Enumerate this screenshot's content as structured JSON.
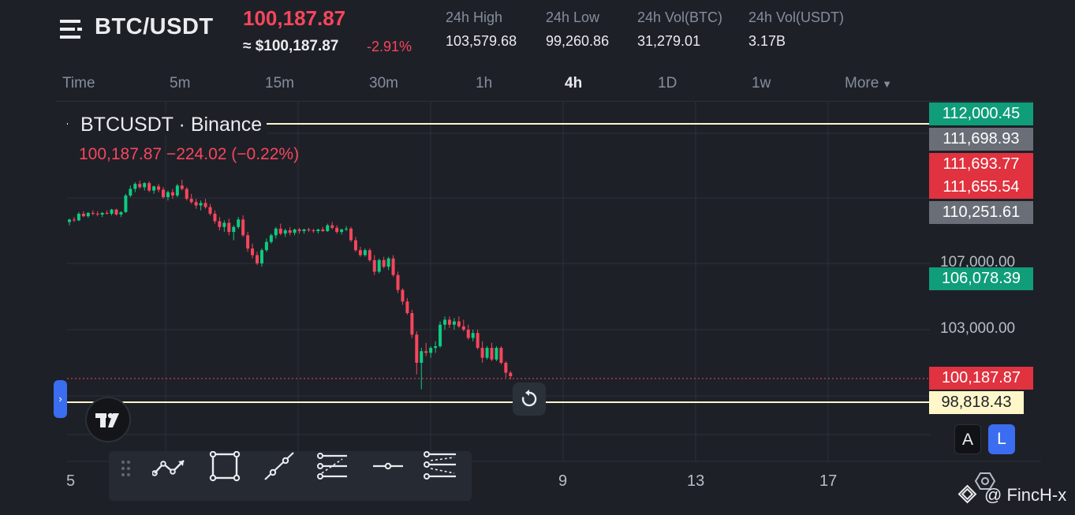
{
  "header": {
    "pair": "BTC/USDT",
    "last_price": "100,187.87",
    "approx_usd": "≈ $100,187.87",
    "change_pct": "-2.91%",
    "stats": [
      {
        "label": "24h High",
        "value": "103,579.68"
      },
      {
        "label": "24h Low",
        "value": "99,260.86"
      },
      {
        "label": "24h Vol(BTC)",
        "value": "31,279.01"
      },
      {
        "label": "24h Vol(USDT)",
        "value": "3.17B"
      }
    ]
  },
  "tabs": [
    {
      "label": "Time",
      "active": false
    },
    {
      "label": "5m",
      "active": false
    },
    {
      "label": "15m",
      "active": false
    },
    {
      "label": "30m",
      "active": false
    },
    {
      "label": "1h",
      "active": false
    },
    {
      "label": "4h",
      "active": true
    },
    {
      "label": "1D",
      "active": false
    },
    {
      "label": "1w",
      "active": false
    },
    {
      "label": "More",
      "active": false
    }
  ],
  "legend": {
    "title": "BTCUSDT · Binance",
    "ohlc": "100,187.87 −224.02 (−0.22%)"
  },
  "price_tags": [
    {
      "label": "112,000.45",
      "color": "#0f9d7a"
    },
    {
      "label": "111,698.93",
      "color": "#6a6e77"
    },
    {
      "label": "111,693.77",
      "color": "#e0323f"
    },
    {
      "label": "111,655.54",
      "color": "#e0323f"
    },
    {
      "label": "110,251.61",
      "color": "#6a6e77"
    },
    {
      "label": "106,078.39",
      "color": "#0f9d7a"
    },
    {
      "label": "100,187.87",
      "color": "#e0323f"
    },
    {
      "label": "98,818.43",
      "color": "#fff7c9"
    }
  ],
  "axis_labels": [
    "107,000.00",
    "103,000.00"
  ],
  "x_ticks": [
    "5",
    "9",
    "13",
    "17"
  ],
  "toggles": {
    "auto": "A",
    "log": "L"
  },
  "toolbar": [
    "drag-handle-icon",
    "trend-line-icon",
    "rectangle-icon",
    "ray-icon",
    "fib-retracement-icon",
    "horizontal-line-icon",
    "parallel-channel-icon"
  ],
  "watermark": "@ FincH-x",
  "colors": {
    "up": "#0ecb81",
    "down": "#f6465d",
    "background": "#1e2027",
    "accent": "#3a6df0"
  },
  "chart_data": {
    "type": "candlestick",
    "title": "BTCUSDT · Binance",
    "interval": "4h",
    "x_ticks": [
      "5",
      "9",
      "13",
      "17"
    ],
    "y_ticks": [
      107000,
      103000
    ],
    "horizontal_lines": [
      112000.45,
      98818.43
    ],
    "last_price": 100187.87,
    "candles": [
      [
        109500,
        109700,
        109300,
        109650
      ],
      [
        109650,
        109800,
        109500,
        109600
      ],
      [
        109600,
        110100,
        109550,
        110000
      ],
      [
        110000,
        110150,
        109800,
        109850
      ],
      [
        109850,
        110100,
        109750,
        110050
      ],
      [
        110050,
        110200,
        109900,
        110000
      ],
      [
        110000,
        110150,
        109850,
        109950
      ],
      [
        109950,
        110100,
        109800,
        110050
      ],
      [
        110050,
        110200,
        109950,
        110000
      ],
      [
        110000,
        110300,
        109900,
        110250
      ],
      [
        110250,
        110300,
        109900,
        109950
      ],
      [
        109950,
        110150,
        109800,
        110100
      ],
      [
        110100,
        111200,
        110050,
        111100
      ],
      [
        111100,
        111700,
        111000,
        111500
      ],
      [
        111500,
        111900,
        111300,
        111800
      ],
      [
        111800,
        112000,
        111500,
        111600
      ],
      [
        111600,
        111900,
        111400,
        111850
      ],
      [
        111850,
        111950,
        111300,
        111400
      ],
      [
        111400,
        111700,
        111200,
        111650
      ],
      [
        111650,
        111800,
        111300,
        111450
      ],
      [
        111450,
        111600,
        110900,
        111000
      ],
      [
        111000,
        111400,
        110800,
        111300
      ],
      [
        111300,
        111500,
        110900,
        111100
      ],
      [
        111100,
        111800,
        111000,
        111700
      ],
      [
        111700,
        112050,
        111400,
        111500
      ],
      [
        111500,
        111600,
        110800,
        110900
      ],
      [
        110900,
        111200,
        110600,
        110700
      ],
      [
        110700,
        110900,
        110300,
        110500
      ],
      [
        110500,
        110800,
        110200,
        110650
      ],
      [
        110650,
        110900,
        110300,
        110400
      ],
      [
        110400,
        110600,
        109900,
        110000
      ],
      [
        110000,
        110200,
        109400,
        109550
      ],
      [
        109550,
        109800,
        109000,
        109200
      ],
      [
        109200,
        109600,
        108900,
        109450
      ],
      [
        109450,
        109700,
        108700,
        108900
      ],
      [
        108900,
        109300,
        108400,
        109200
      ],
      [
        109200,
        109800,
        109100,
        109650
      ],
      [
        109650,
        109900,
        108600,
        108700
      ],
      [
        108700,
        108900,
        107700,
        107900
      ],
      [
        107900,
        108200,
        107300,
        107500
      ],
      [
        107500,
        107700,
        106900,
        107000
      ],
      [
        107000,
        107900,
        106800,
        107800
      ],
      [
        107800,
        108500,
        107700,
        108300
      ],
      [
        108300,
        108800,
        108200,
        108700
      ],
      [
        108700,
        109200,
        108500,
        109100
      ],
      [
        109100,
        109400,
        108700,
        108800
      ],
      [
        108800,
        109100,
        108600,
        109000
      ],
      [
        109000,
        109200,
        108700,
        108850
      ],
      [
        108850,
        109100,
        108700,
        109050
      ],
      [
        109050,
        109150,
        108800,
        108950
      ],
      [
        108950,
        109100,
        108800,
        109050
      ],
      [
        109050,
        109150,
        108900,
        109000
      ],
      [
        109000,
        109100,
        108850,
        108950
      ],
      [
        108950,
        109100,
        108800,
        109050
      ],
      [
        109050,
        109200,
        108900,
        108950
      ],
      [
        108950,
        109400,
        108900,
        109300
      ],
      [
        109300,
        109500,
        109050,
        109150
      ],
      [
        109150,
        109300,
        108800,
        108900
      ],
      [
        108900,
        109100,
        108750,
        109050
      ],
      [
        109050,
        109250,
        108950,
        109100
      ],
      [
        109100,
        109200,
        108300,
        108400
      ],
      [
        108400,
        108600,
        107700,
        107800
      ],
      [
        107800,
        108000,
        107400,
        107500
      ],
      [
        107500,
        107900,
        107400,
        107800
      ],
      [
        107800,
        107900,
        107100,
        107200
      ],
      [
        107200,
        107500,
        106300,
        106500
      ],
      [
        106500,
        107300,
        106400,
        107200
      ],
      [
        107200,
        107400,
        106700,
        106800
      ],
      [
        106800,
        107400,
        106600,
        107300
      ],
      [
        107300,
        107500,
        106200,
        106300
      ],
      [
        106300,
        106500,
        105200,
        105400
      ],
      [
        105400,
        105500,
        104500,
        104700
      ],
      [
        104700,
        104900,
        103900,
        104000
      ],
      [
        104000,
        104200,
        102500,
        102700
      ],
      [
        102700,
        102900,
        100300,
        101000
      ],
      [
        101000,
        101900,
        99400,
        101700
      ],
      [
        101700,
        102200,
        101400,
        101600
      ],
      [
        101600,
        102000,
        101300,
        101900
      ],
      [
        101900,
        102300,
        101600,
        102000
      ],
      [
        102000,
        103500,
        101900,
        103300
      ],
      [
        103300,
        103800,
        103000,
        103600
      ],
      [
        103600,
        103800,
        103100,
        103300
      ],
      [
        103300,
        103700,
        103000,
        103500
      ],
      [
        103500,
        103800,
        103100,
        103200
      ],
      [
        103200,
        103600,
        102900,
        103000
      ],
      [
        103000,
        103300,
        102400,
        102500
      ],
      [
        102500,
        103000,
        102300,
        102800
      ],
      [
        102800,
        103000,
        101800,
        101900
      ],
      [
        101900,
        102300,
        101000,
        101300
      ],
      [
        101300,
        102000,
        101200,
        101900
      ],
      [
        101900,
        102200,
        101100,
        101200
      ],
      [
        101200,
        102000,
        101100,
        101900
      ],
      [
        101900,
        102000,
        100900,
        101000
      ],
      [
        101000,
        101100,
        100100,
        100400
      ],
      [
        100400,
        100500,
        100000,
        100190
      ]
    ]
  }
}
